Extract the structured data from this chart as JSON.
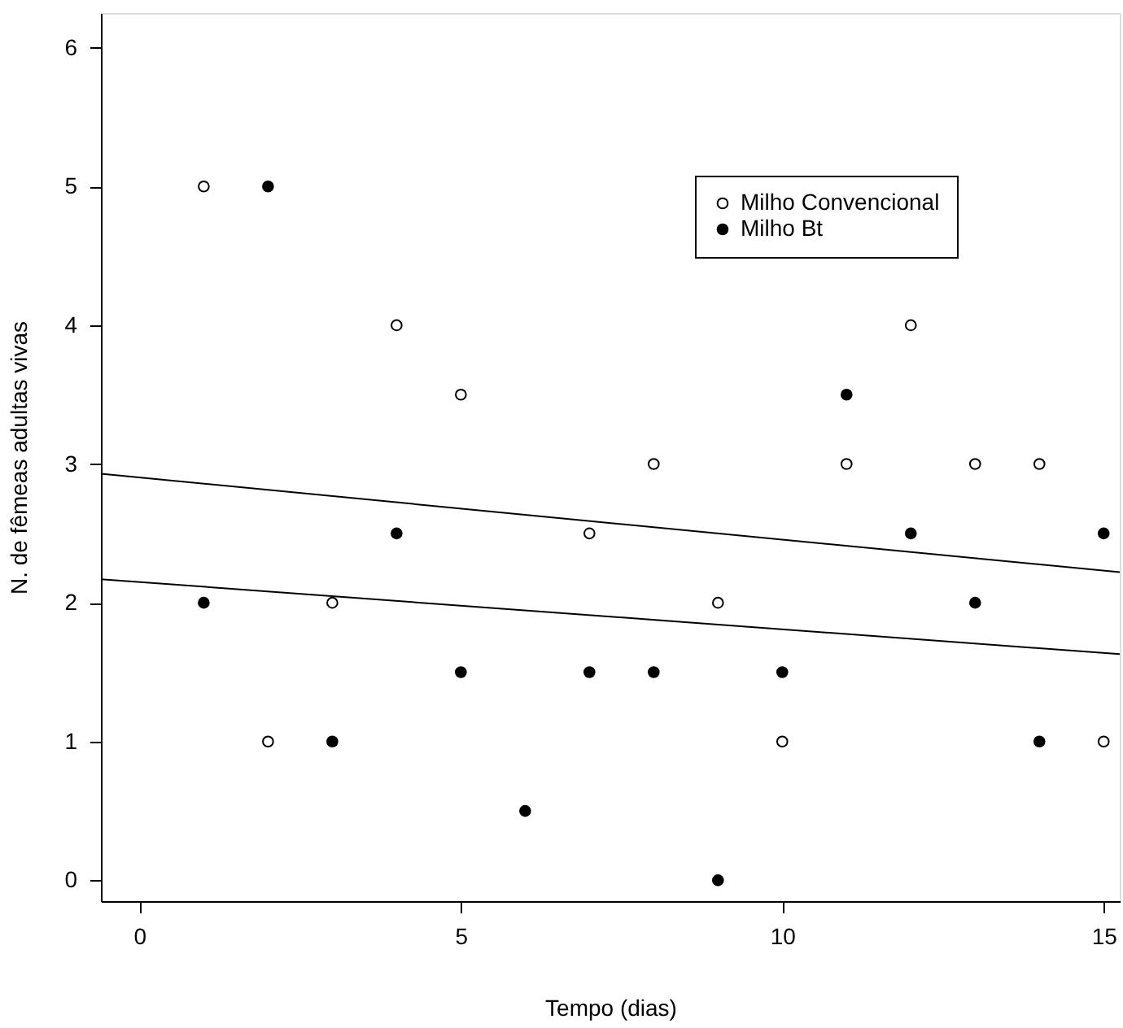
{
  "chart_data": {
    "type": "scatter",
    "xlabel": "Tempo (dias)",
    "ylabel": "N. de fêmeas adultas vivas",
    "xlim": [
      -0.6,
      15.25
    ],
    "ylim": [
      -0.15,
      6.25
    ],
    "xticks": [
      0,
      5,
      10,
      15
    ],
    "yticks": [
      0,
      1,
      2,
      3,
      4,
      5,
      6
    ],
    "grid": false,
    "legend": "top right",
    "marker": "circle",
    "series": [
      {
        "name": "Milho Convencional",
        "color": "#000000",
        "x": [
          1,
          2,
          3,
          4,
          5,
          7,
          8,
          9,
          10,
          11,
          12,
          13,
          14,
          15
        ],
        "values": [
          5,
          1,
          2,
          4,
          3.5,
          2.5,
          3,
          2,
          1,
          3,
          4,
          3,
          3,
          1
        ]
      },
      {
        "name": "Milho Bt",
        "color": "#000000",
        "x": [
          1,
          2,
          3,
          4,
          5,
          6,
          7,
          8,
          9,
          10,
          11,
          12,
          13,
          14,
          15
        ],
        "values": [
          2,
          5,
          1,
          2.5,
          1.5,
          0.5,
          1.5,
          1.5,
          0,
          1.5,
          3.5,
          2.5,
          2,
          1,
          2.5
        ]
      },
      {
        "type": "line",
        "marker": "none",
        "color": "#000000",
        "x": [
          -0.6,
          15.25
        ],
        "values": [
          2.93,
          2.22
        ]
      },
      {
        "type": "line",
        "marker": "none",
        "color": "#000000",
        "x": [
          -0.6,
          15.25
        ],
        "values": [
          2.17,
          1.63
        ]
      }
    ]
  }
}
